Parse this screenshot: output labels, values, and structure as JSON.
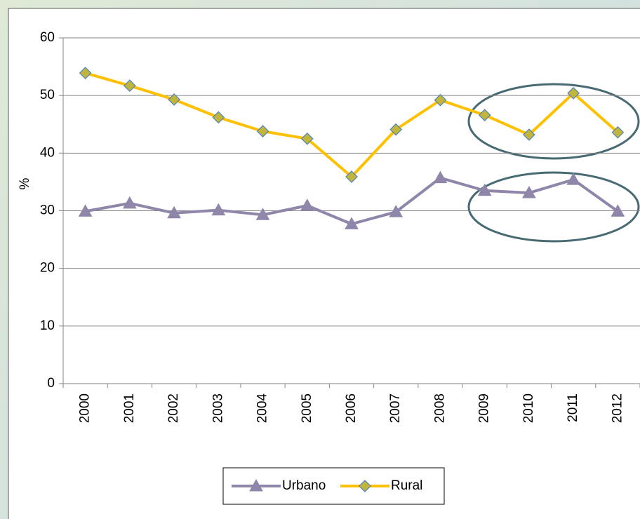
{
  "chart_data": {
    "type": "line",
    "y_label": "%",
    "categories": [
      "2000",
      "2001",
      "2002",
      "2003",
      "2004",
      "2005",
      "2006",
      "2007",
      "2008",
      "2009",
      "2010",
      "2011",
      "2012"
    ],
    "series": [
      {
        "name": "Urbano",
        "color": "#8f86aa",
        "marker": "triangle",
        "values": [
          29.9,
          31.3,
          29.6,
          30.1,
          29.3,
          30.9,
          27.7,
          29.8,
          35.7,
          33.5,
          33.1,
          35.4,
          29.9
        ]
      },
      {
        "name": "Rural",
        "color": "#ffc000",
        "marker": "diamond",
        "values": [
          53.9,
          51.7,
          49.3,
          46.2,
          43.8,
          42.5,
          35.9,
          44.1,
          49.2,
          46.6,
          43.2,
          50.4,
          43.6
        ]
      }
    ],
    "ylim": [
      0,
      60
    ],
    "yticks": [
      0,
      10,
      20,
      30,
      40,
      50,
      60
    ],
    "grid": true,
    "legend": "bottom"
  }
}
